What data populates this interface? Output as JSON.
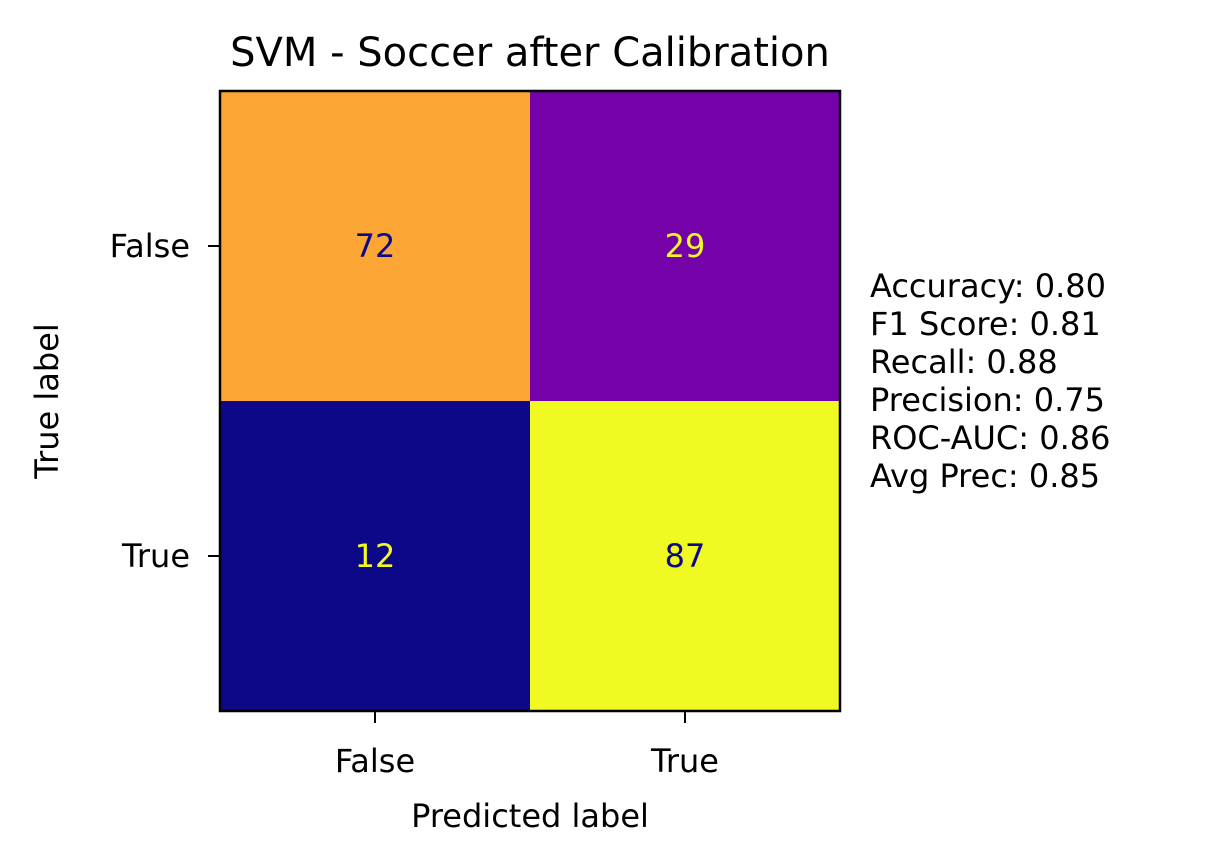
{
  "chart_data": {
    "type": "heatmap",
    "title": "SVM - Soccer after Calibration",
    "xlabel": "Predicted label",
    "ylabel": "True label",
    "x_categories": [
      "False",
      "True"
    ],
    "y_categories": [
      "False",
      "True"
    ],
    "matrix": [
      [
        72,
        29
      ],
      [
        12,
        87
      ]
    ],
    "colormap": "plasma",
    "cell_colors": [
      [
        "#fca636",
        "#7501a8"
      ],
      [
        "#0d0887",
        "#f0f921"
      ]
    ],
    "text_colors": [
      [
        "#0d0887",
        "#f0f921"
      ],
      [
        "#f0f921",
        "#0d0887"
      ]
    ],
    "grid": false,
    "legend": "none",
    "metrics": [
      "Accuracy: 0.80",
      "F1 Score: 0.81",
      "Recall: 0.88",
      "Precision: 0.75",
      "ROC-AUC: 0.86",
      "Avg Prec: 0.85"
    ]
  }
}
